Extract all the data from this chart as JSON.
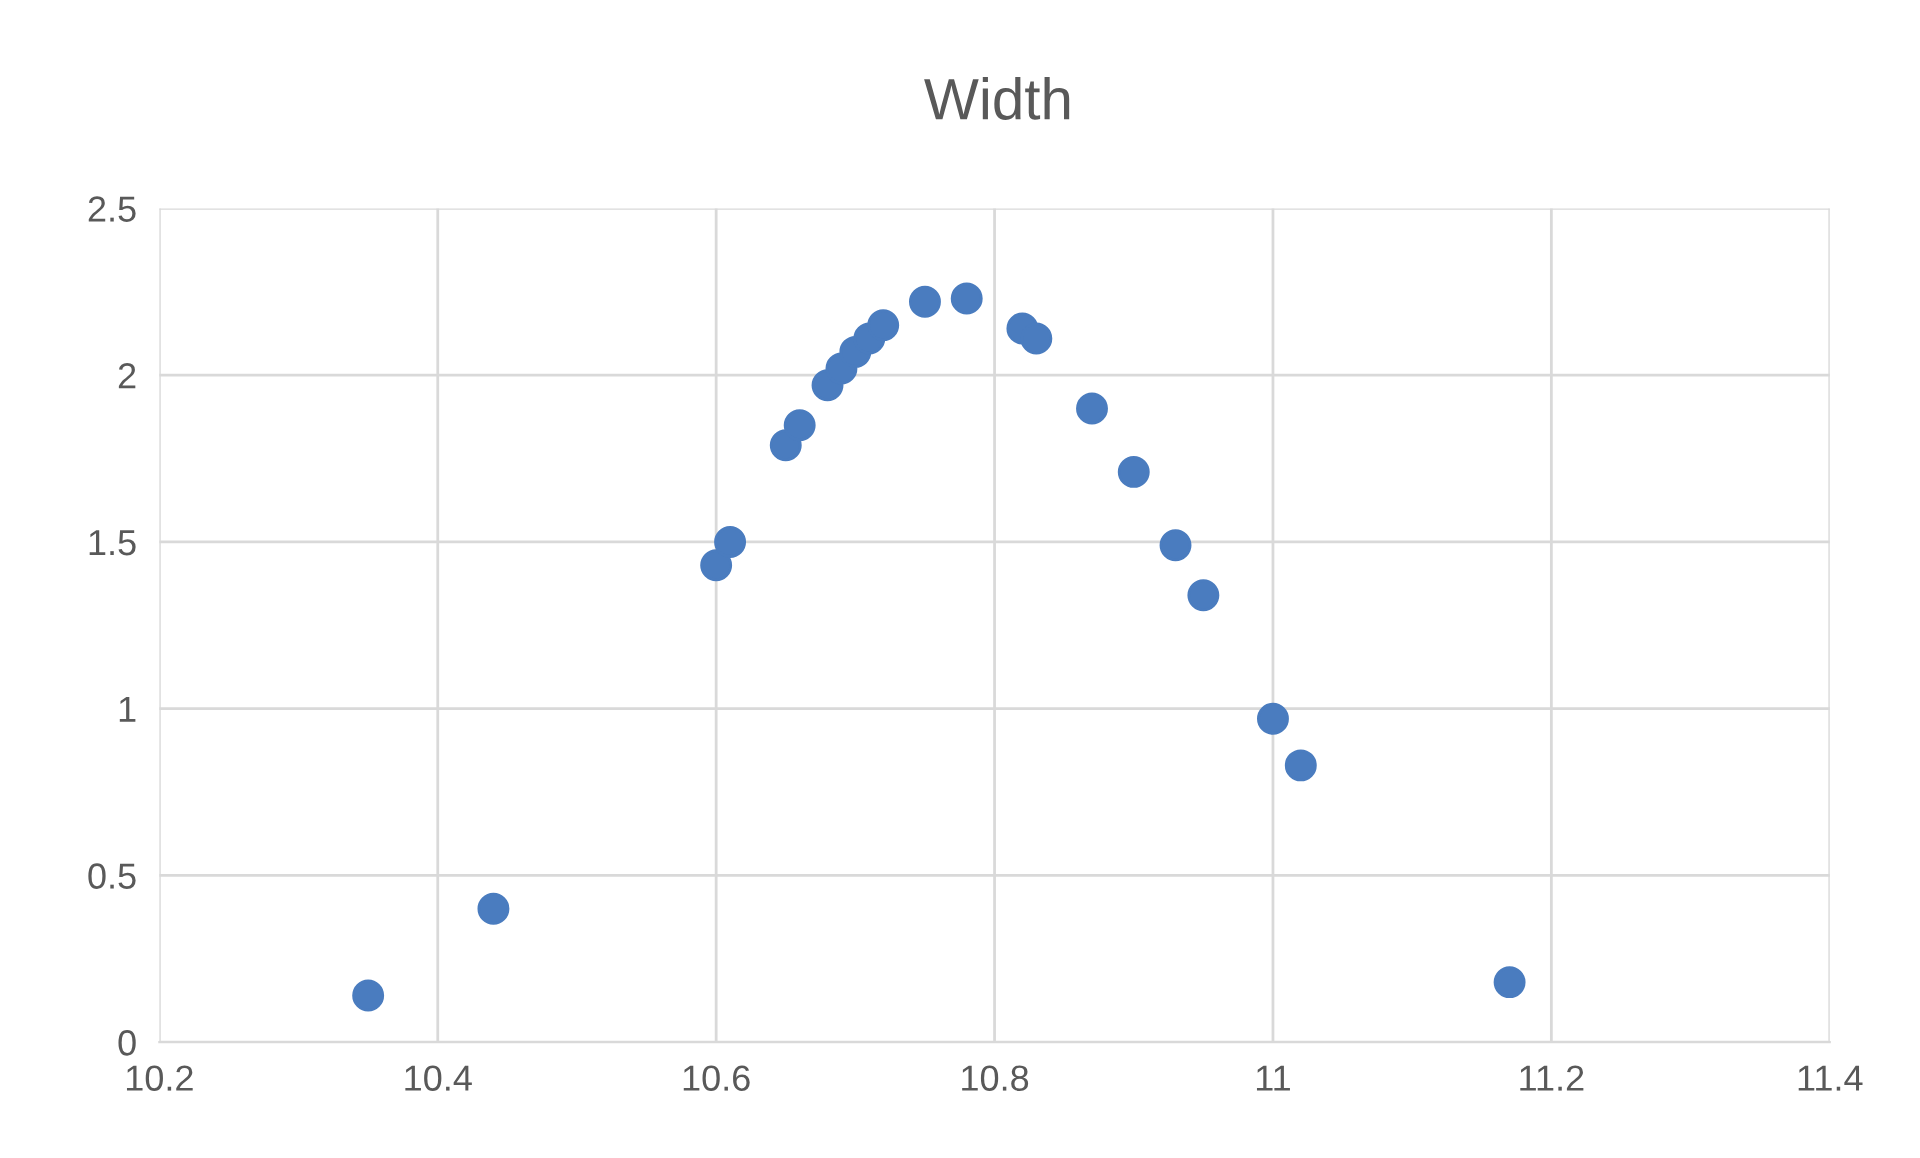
{
  "chart_data": {
    "type": "scatter",
    "title": "Width",
    "series": [
      {
        "color": "#4a7cbf",
        "x": [
          10.35,
          10.44,
          10.6,
          10.61,
          10.65,
          10.66,
          10.68,
          10.69,
          10.7,
          10.71,
          10.72,
          10.75,
          10.78,
          10.82,
          10.83,
          10.87,
          10.9,
          10.93,
          10.95,
          11.0,
          11.02,
          11.17
        ],
        "values": [
          0.14,
          0.4,
          1.43,
          1.5,
          1.79,
          1.85,
          1.97,
          2.02,
          2.07,
          2.11,
          2.15,
          2.22,
          2.23,
          2.14,
          2.11,
          1.9,
          1.71,
          1.49,
          1.34,
          0.97,
          0.83,
          0.18
        ]
      }
    ],
    "xlim": [
      10.2,
      11.4
    ],
    "xticks": [
      10.2,
      10.4,
      10.6,
      10.8,
      11,
      11.2,
      11.4
    ],
    "ylim": [
      0,
      2.5
    ],
    "yticks": [
      0,
      0.5,
      1,
      1.5,
      2,
      2.5
    ],
    "grid": true,
    "marker": "circle"
  }
}
